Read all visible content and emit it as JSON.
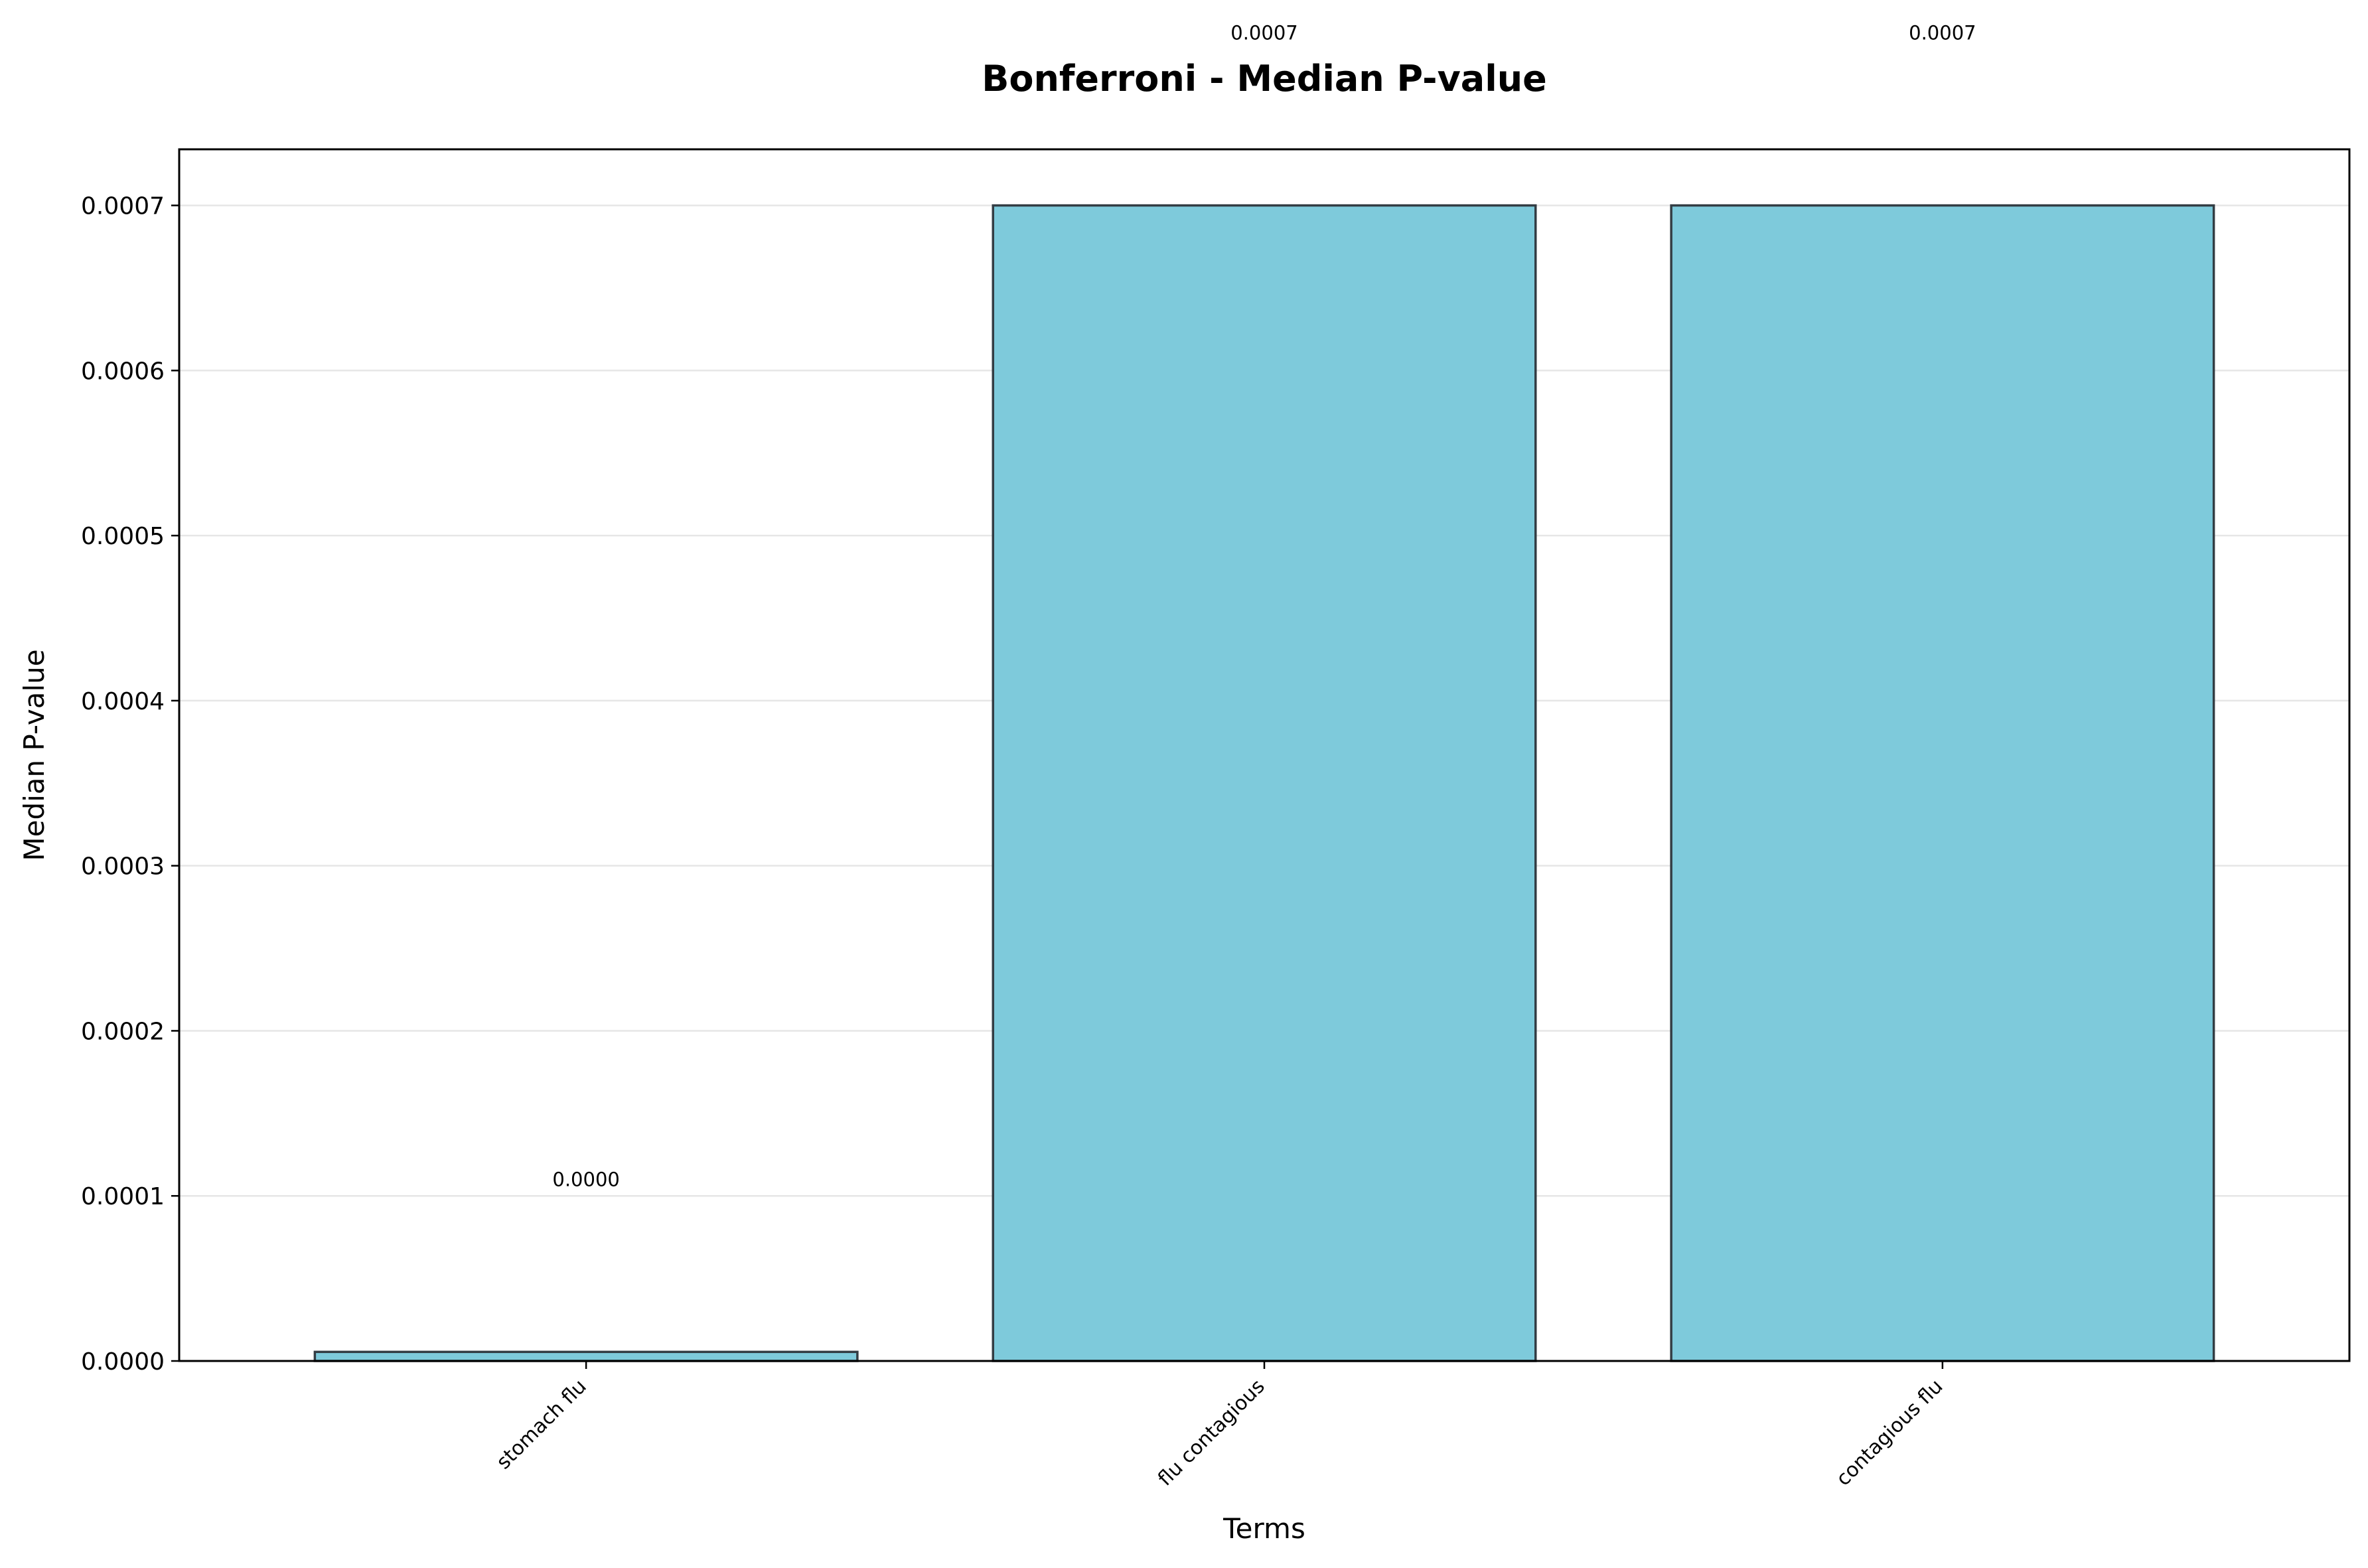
{
  "chart_data": {
    "type": "bar",
    "title": "Bonferroni - Median P-value",
    "xlabel": "Terms",
    "ylabel": "Median P-value",
    "categories": [
      "stomach flu",
      "flu contagious",
      "contagious flu"
    ],
    "values": [
      5.5e-06,
      0.0007,
      0.0007
    ],
    "value_labels": [
      "0.0000",
      "0.0007",
      "0.0007"
    ],
    "ylim": [
      0,
      0.000734
    ],
    "yticks": [
      0,
      0.0001,
      0.0002,
      0.0003,
      0.0004,
      0.0005,
      0.0006,
      0.0007
    ],
    "ytick_labels": [
      "0.0000",
      "0.0001",
      "0.0002",
      "0.0003",
      "0.0004",
      "0.0005",
      "0.0006",
      "0.0007"
    ],
    "grid": "horizontal",
    "legend": "none",
    "colors": {
      "bar": "#7ecadb",
      "bar_edge": "#333d44",
      "grid": "#e6e6e6"
    }
  }
}
